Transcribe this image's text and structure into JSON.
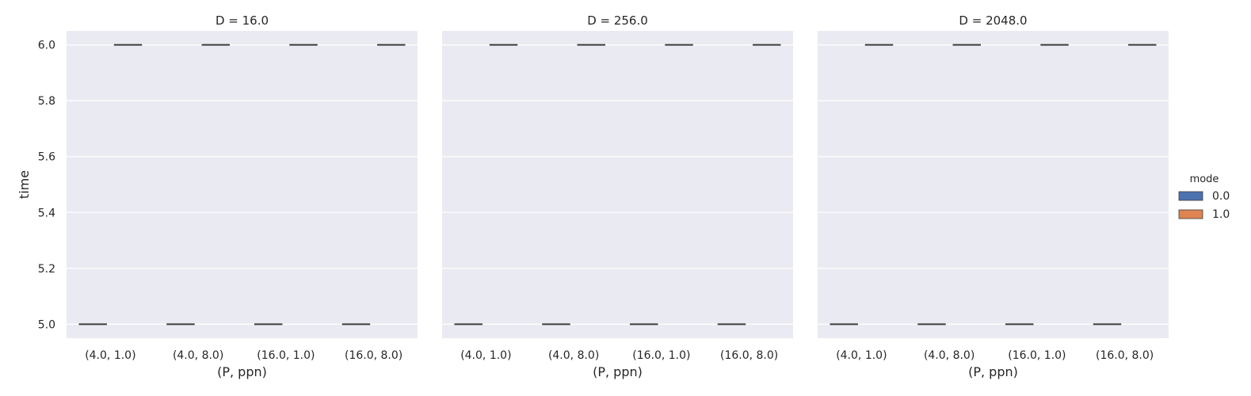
{
  "chart_data": [
    {
      "type": "box",
      "title": "D = 16.0",
      "xlabel": "(P, ppn)",
      "ylabel": "time",
      "categories": [
        "(4.0, 1.0)",
        "(4.0, 8.0)",
        "(16.0, 1.0)",
        "(16.0, 8.0)"
      ],
      "ylim": [
        4.95,
        6.05
      ],
      "yticks": [
        "5.0",
        "5.2",
        "5.4",
        "5.6",
        "5.8",
        "6.0"
      ],
      "grid": true,
      "series": [
        {
          "name": "0.0",
          "color": "#4c72b0",
          "values": [
            5.0,
            5.0,
            5.0,
            5.0
          ]
        },
        {
          "name": "1.0",
          "color": "#dd8452",
          "values": [
            6.0,
            6.0,
            6.0,
            6.0
          ]
        }
      ]
    },
    {
      "type": "box",
      "title": "D = 256.0",
      "xlabel": "(P, ppn)",
      "ylabel": "",
      "categories": [
        "(4.0, 1.0)",
        "(4.0, 8.0)",
        "(16.0, 1.0)",
        "(16.0, 8.0)"
      ],
      "ylim": [
        4.95,
        6.05
      ],
      "grid": true,
      "series": [
        {
          "name": "0.0",
          "color": "#4c72b0",
          "values": [
            5.0,
            5.0,
            5.0,
            5.0
          ]
        },
        {
          "name": "1.0",
          "color": "#dd8452",
          "values": [
            6.0,
            6.0,
            6.0,
            6.0
          ]
        }
      ]
    },
    {
      "type": "box",
      "title": "D = 2048.0",
      "xlabel": "(P, ppn)",
      "ylabel": "",
      "categories": [
        "(4.0, 1.0)",
        "(4.0, 8.0)",
        "(16.0, 1.0)",
        "(16.0, 8.0)"
      ],
      "ylim": [
        4.95,
        6.05
      ],
      "grid": true,
      "series": [
        {
          "name": "0.0",
          "color": "#4c72b0",
          "values": [
            5.0,
            5.0,
            5.0,
            5.0
          ]
        },
        {
          "name": "1.0",
          "color": "#dd8452",
          "values": [
            6.0,
            6.0,
            6.0,
            6.0
          ]
        }
      ]
    }
  ],
  "legend": {
    "title": "mode",
    "placement": "right",
    "entries": [
      {
        "label": "0.0",
        "color": "#4c72b0"
      },
      {
        "label": "1.0",
        "color": "#dd8452"
      }
    ]
  }
}
